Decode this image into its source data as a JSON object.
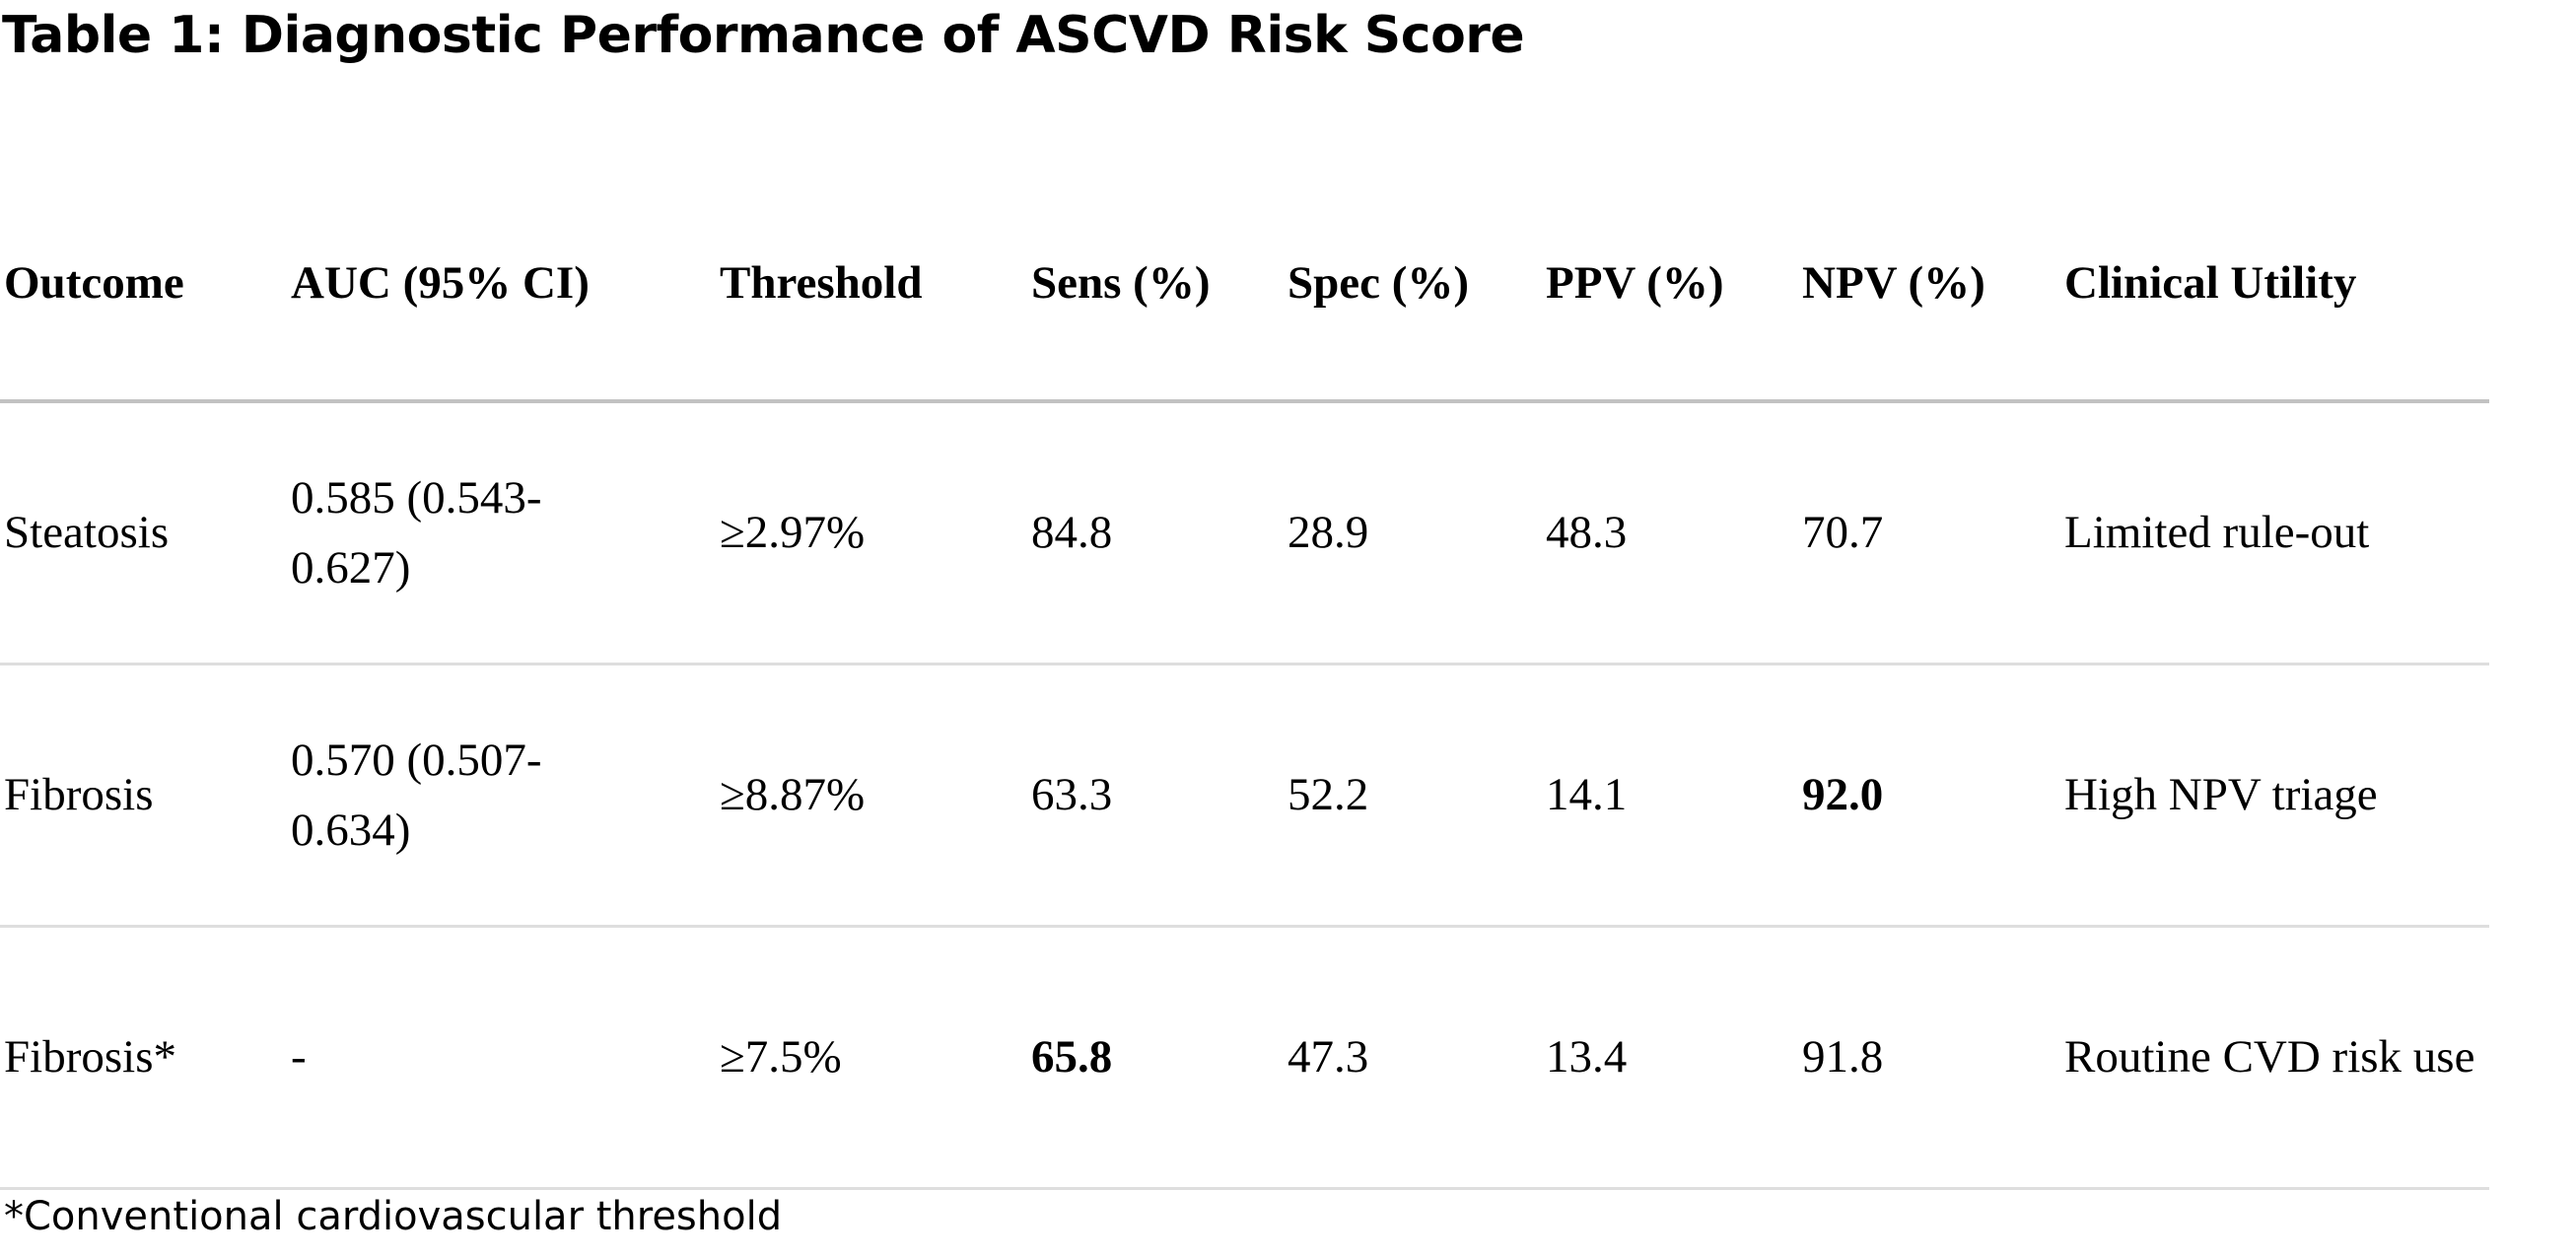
{
  "title": "Table 1: Diagnostic Performance of ASCVD Risk Score",
  "table": {
    "headers": [
      "Outcome",
      "AUC (95% CI)",
      "Threshold",
      "Sens (%)",
      "Spec (%)",
      "PPV (%)",
      "NPV (%)",
      "Clinical Utility"
    ],
    "rows": [
      [
        "Steatosis",
        "0.585 (0.543-0.627)",
        "≥2.97%",
        "84.8",
        "28.9",
        "48.3",
        "70.7",
        "Limited rule-out"
      ],
      [
        "Fibrosis",
        "0.570 (0.507-0.634)",
        "≥8.87%",
        "63.3",
        "52.2",
        "14.1",
        "92.0",
        "High NPV triage"
      ],
      [
        "Fibrosis*",
        "-",
        "≥7.5%",
        "65.8",
        "47.3",
        "13.4",
        "91.8",
        "Routine CVD risk use"
      ]
    ],
    "bold_cells": [
      "1.6",
      "2.3"
    ]
  },
  "footnote": "*Conventional cardiovascular threshold"
}
